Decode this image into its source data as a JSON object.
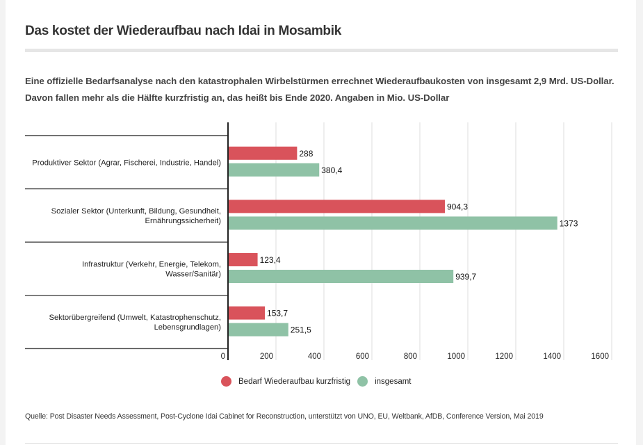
{
  "header": {
    "title": "Das kostet der Wiederaufbau nach Idai in Mosambik",
    "subtitle": "Eine offizielle Bedarfsanalyse nach den katastrophalen Wirbelstürmen errechnet Wiederaufbaukosten von insgesamt 2,9 Mrd. US-Dollar. Davon fallen mehr als die Hälfte kurzfristig an, das heißt bis Ende 2020. Angaben in Mio. US-Dollar"
  },
  "footer": {
    "source": "Quelle: Post Disaster Needs Assessment, Post-Cyclone Idai Cabinet for Reconstruction, unterstützt von UNO, EU, Weltbank, AfDB, Conference Version, Mai 2019"
  },
  "colors": {
    "short_term": "#d9535b",
    "total": "#8fc2a6",
    "grid": "#e2e2e2",
    "axis": "#222222"
  },
  "chart_data": {
    "type": "bar",
    "orientation": "horizontal",
    "title": "Das kostet der Wiederaufbau nach Idai in Mosambik",
    "xlabel": "",
    "ylabel": "",
    "unit": "Mio. US-Dollar",
    "xlim": [
      0,
      1600
    ],
    "xticks": [
      0,
      200,
      400,
      600,
      800,
      1000,
      1200,
      1400,
      1600
    ],
    "xtick_labels": [
      "0",
      "200",
      "400",
      "600",
      "800",
      "1000",
      "1200",
      "1400",
      "1600"
    ],
    "grid": true,
    "legend_position": "bottom",
    "categories": [
      [
        "Produktiver Sektor (Agrar, Fischerei, Industrie, Handel)"
      ],
      [
        "Sozialer Sektor (Unterkunft, Bildung, Gesundheit,",
        "Ernährungssicherheit)"
      ],
      [
        "Infrastruktur (Verkehr, Energie, Telekom,",
        "Wasser/Sanitär)"
      ],
      [
        "Sektorübergreifend (Umwelt, Katastrophenschutz,",
        "Lebensgrundlagen)"
      ]
    ],
    "series": [
      {
        "name": "Bedarf Wiederaufbau kurzfristig",
        "color": "#d9535b",
        "values": [
          288,
          904.3,
          123.4,
          153.7
        ],
        "labels": [
          "288",
          "904,3",
          "123,4",
          "153,7"
        ]
      },
      {
        "name": "insgesamt",
        "color": "#8fc2a6",
        "values": [
          380.4,
          1373,
          939.7,
          251.5
        ],
        "labels": [
          "380,4",
          "1373",
          "939,7",
          "251,5"
        ]
      }
    ]
  }
}
